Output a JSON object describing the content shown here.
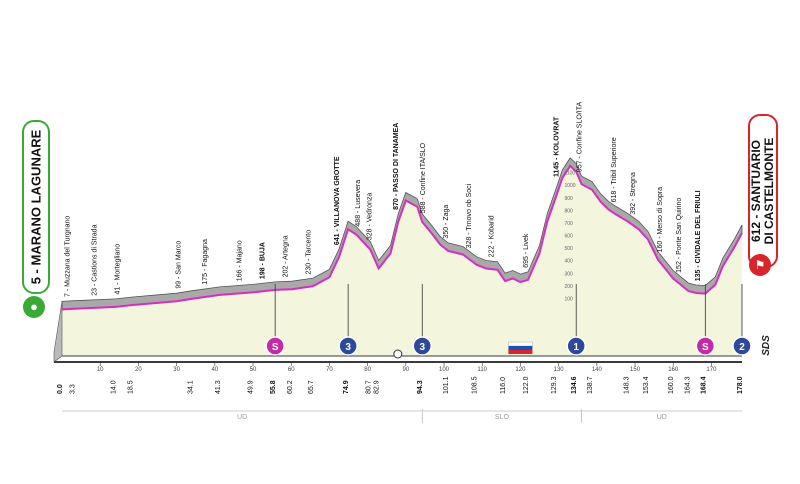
{
  "chart_data": {
    "type": "area",
    "title": "",
    "xlabel": "",
    "ylabel": "",
    "xlim": [
      0,
      178
    ],
    "ylim": [
      0,
      1200
    ],
    "y_ticks": [
      100,
      200,
      300,
      400,
      500,
      600,
      700,
      800,
      900,
      1000,
      1100
    ],
    "start": {
      "altitude": "5",
      "name": "MARANO LAGUNARE"
    },
    "finish": {
      "altitude": "612",
      "name_line1": "SANTUARIO",
      "name_line2": "DI CASTELMONTE"
    },
    "sponsor_mark": "SDS",
    "profile": {
      "km": [
        0,
        3.3,
        14,
        18.5,
        30,
        34.1,
        41.3,
        49.9,
        55.8,
        60.2,
        65.7,
        70,
        72.5,
        74.9,
        77,
        80.7,
        82.9,
        86,
        88,
        90,
        93,
        94.3,
        97,
        99,
        101.1,
        105,
        108.5,
        111,
        114,
        116,
        118,
        120,
        122,
        125,
        127,
        129.3,
        131,
        133,
        134.6,
        136,
        138.7,
        141,
        143,
        145,
        148.3,
        151,
        153.4,
        156,
        160,
        164,
        166,
        168.4,
        171,
        173,
        176,
        178
      ],
      "alt": [
        5,
        10,
        25,
        40,
        70,
        90,
        120,
        140,
        160,
        165,
        190,
        260,
        420,
        641,
        600,
        480,
        330,
        450,
        700,
        870,
        820,
        700,
        600,
        520,
        470,
        440,
        360,
        330,
        320,
        230,
        250,
        222,
        240,
        450,
        700,
        900,
        1050,
        1145,
        1100,
        1000,
        957,
        860,
        800,
        760,
        700,
        640,
        560,
        400,
        250,
        150,
        135,
        130,
        200,
        350,
        500,
        612
      ]
    },
    "top_labels": [
      {
        "km": 2,
        "text": "7 - Muzzana del Turgnano",
        "bold": false
      },
      {
        "km": 9,
        "text": "23 - Castions di Strada",
        "bold": false
      },
      {
        "km": 15,
        "text": "41 - Mortegliano",
        "bold": false
      },
      {
        "km": 31,
        "text": "99 - San Marco",
        "bold": false
      },
      {
        "km": 38,
        "text": "175 - Fagagna",
        "bold": false
      },
      {
        "km": 47,
        "text": "166 - Majano",
        "bold": false
      },
      {
        "km": 53,
        "text": "198 - BUJA",
        "bold": true
      },
      {
        "km": 59,
        "text": "202 - Artegna",
        "bold": false
      },
      {
        "km": 65,
        "text": "230 - Tarcento",
        "bold": false
      },
      {
        "km": 72.5,
        "text": "641 - VILLANOVA GROTTE",
        "bold": true
      },
      {
        "km": 78,
        "text": "488 - Lusevera",
        "bold": false
      },
      {
        "km": 81,
        "text": "328 - Vedronza",
        "bold": false
      },
      {
        "km": 88,
        "text": "870 - PASSO DI TANAMEA",
        "bold": true
      },
      {
        "km": 95,
        "text": "588 - Confine ITA/SLO",
        "bold": false
      },
      {
        "km": 101,
        "text": "350 - Zaga",
        "bold": false
      },
      {
        "km": 107,
        "text": "328 - Trnovo ob Soci",
        "bold": false
      },
      {
        "km": 113,
        "text": "222 - Kobarid",
        "bold": false
      },
      {
        "km": 122,
        "text": "695 - Livek",
        "bold": false
      },
      {
        "km": 130,
        "text": "1145 - KOLOVRAT",
        "bold": true
      },
      {
        "km": 136,
        "text": "957 - Confine SLO/ITA",
        "bold": false
      },
      {
        "km": 145,
        "text": "618 - Tribil Superiore",
        "bold": false
      },
      {
        "km": 150,
        "text": "392 - Stregna",
        "bold": false
      },
      {
        "km": 157,
        "text": "160 - Merso di Sopra",
        "bold": false
      },
      {
        "km": 162,
        "text": "152 - Ponte San Quirino",
        "bold": false
      },
      {
        "km": 167,
        "text": "135 - CIVIDALE DEL FRIULI",
        "bold": true
      }
    ],
    "km_labels": [
      {
        "km": 0,
        "text": "0.0",
        "bold": true
      },
      {
        "km": 3.3,
        "text": "3.3",
        "bold": false
      },
      {
        "km": 14.0,
        "text": "14.0",
        "bold": false
      },
      {
        "km": 18.5,
        "text": "18.5",
        "bold": false
      },
      {
        "km": 34.1,
        "text": "34.1",
        "bold": false
      },
      {
        "km": 41.3,
        "text": "41.3",
        "bold": false
      },
      {
        "km": 49.9,
        "text": "49.9",
        "bold": false
      },
      {
        "km": 55.8,
        "text": "55.8",
        "bold": true
      },
      {
        "km": 60.2,
        "text": "60.2",
        "bold": false
      },
      {
        "km": 65.7,
        "text": "65.7",
        "bold": false
      },
      {
        "km": 74.9,
        "text": "74.9",
        "bold": true
      },
      {
        "km": 80.7,
        "text": "80.7",
        "bold": false
      },
      {
        "km": 82.9,
        "text": "82.9",
        "bold": false
      },
      {
        "km": 94.3,
        "text": "94.3",
        "bold": true
      },
      {
        "km": 101.1,
        "text": "101.1",
        "bold": false
      },
      {
        "km": 108.5,
        "text": "108.5",
        "bold": false
      },
      {
        "km": 116.0,
        "text": "116.0",
        "bold": false
      },
      {
        "km": 122.0,
        "text": "122.0",
        "bold": false
      },
      {
        "km": 129.3,
        "text": "129.3",
        "bold": false
      },
      {
        "km": 134.6,
        "text": "134.6",
        "bold": true
      },
      {
        "km": 138.7,
        "text": "138.7",
        "bold": false
      },
      {
        "km": 148.3,
        "text": "148.3",
        "bold": false
      },
      {
        "km": 153.4,
        "text": "153.4",
        "bold": false
      },
      {
        "km": 160.0,
        "text": "160.0",
        "bold": false
      },
      {
        "km": 164.3,
        "text": "164.3",
        "bold": false
      },
      {
        "km": 168.4,
        "text": "168.4",
        "bold": true
      },
      {
        "km": 178.0,
        "text": "178.0",
        "bold": true
      }
    ],
    "scale_ticks": [
      {
        "km": 10,
        "text": "10"
      },
      {
        "km": 20,
        "text": "20"
      },
      {
        "km": 30,
        "text": "30"
      },
      {
        "km": 40,
        "text": "40"
      },
      {
        "km": 50,
        "text": "50"
      },
      {
        "km": 60,
        "text": "60"
      },
      {
        "km": 70,
        "text": "70"
      },
      {
        "km": 80,
        "text": "80"
      },
      {
        "km": 90,
        "text": "90"
      },
      {
        "km": 100,
        "text": "100"
      },
      {
        "km": 110,
        "text": "110"
      },
      {
        "km": 120,
        "text": "120"
      },
      {
        "km": 130,
        "text": "130"
      },
      {
        "km": 140,
        "text": "140"
      },
      {
        "km": 150,
        "text": "150"
      },
      {
        "km": 160,
        "text": "160"
      },
      {
        "km": 170,
        "text": "170"
      }
    ],
    "markers": [
      {
        "km": 55.8,
        "text": "S",
        "color": "#c42aa8",
        "kind": "sprint"
      },
      {
        "km": 74.9,
        "text": "3",
        "color": "#2d4a9a",
        "kind": "climb"
      },
      {
        "km": 94.3,
        "text": "3",
        "color": "#2d4a9a",
        "kind": "climb"
      },
      {
        "km": 134.6,
        "text": "1",
        "color": "#2d4a9a",
        "kind": "climb"
      },
      {
        "km": 168.4,
        "text": "S",
        "color": "#c42aa8",
        "kind": "sprint"
      },
      {
        "km": 178.0,
        "text": "2",
        "color": "#2d4a9a",
        "kind": "climb"
      }
    ],
    "regions": [
      {
        "label": "UD",
        "km_from": 0,
        "km_to": 94.3
      },
      {
        "label": "SLO",
        "km_from": 94.3,
        "km_to": 136
      },
      {
        "label": "UD",
        "km_from": 136,
        "km_to": 178
      }
    ],
    "colors": {
      "fill": "#f3f5dd",
      "ridge": "#a9a9a9",
      "ridge_dark": "#555555",
      "road": "#d62fbf",
      "base": "#3a3a3a"
    }
  }
}
